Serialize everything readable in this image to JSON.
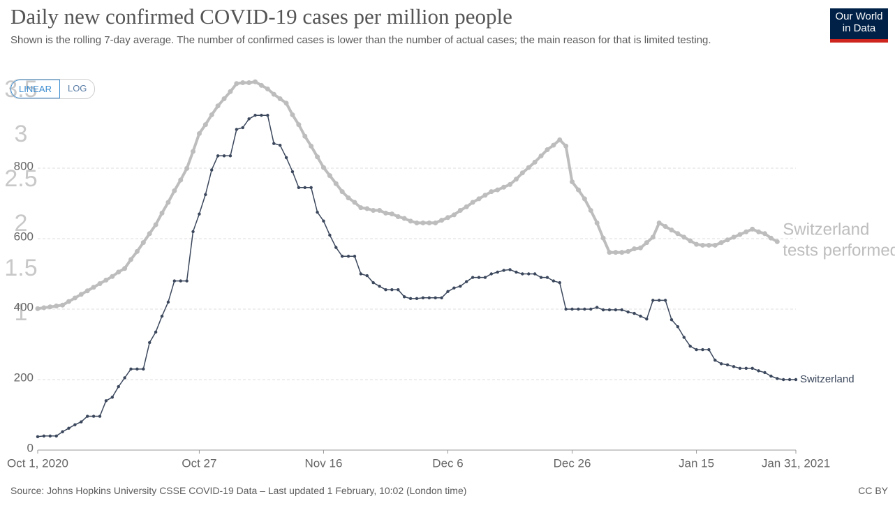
{
  "chart_data": {
    "type": "line",
    "title": "Daily new confirmed COVID-19 cases per million people",
    "subtitle": "Shown is the rolling 7-day average. The number of confirmed cases is lower than the number of actual cases; the main reason for that is limited testing.",
    "source": "Source: Johns Hopkins University CSSE COVID-19 Data – Last updated 1 February, 10:02 (London time)",
    "license": "CC BY",
    "logo": [
      "Our World",
      "in Data"
    ],
    "scale_buttons": [
      "LINEAR",
      "LOG"
    ],
    "x": [
      "2020-10-01",
      "2020-10-02",
      "2020-10-03",
      "2020-10-04",
      "2020-10-05",
      "2020-10-06",
      "2020-10-07",
      "2020-10-08",
      "2020-10-09",
      "2020-10-10",
      "2020-10-11",
      "2020-10-12",
      "2020-10-13",
      "2020-10-14",
      "2020-10-15",
      "2020-10-16",
      "2020-10-17",
      "2020-10-18",
      "2020-10-19",
      "2020-10-20",
      "2020-10-21",
      "2020-10-22",
      "2020-10-23",
      "2020-10-24",
      "2020-10-25",
      "2020-10-26",
      "2020-10-27",
      "2020-10-28",
      "2020-10-29",
      "2020-10-30",
      "2020-10-31",
      "2020-11-01",
      "2020-11-02",
      "2020-11-03",
      "2020-11-04",
      "2020-11-05",
      "2020-11-06",
      "2020-11-07",
      "2020-11-08",
      "2020-11-09",
      "2020-11-10",
      "2020-11-11",
      "2020-11-12",
      "2020-11-13",
      "2020-11-14",
      "2020-11-15",
      "2020-11-16",
      "2020-11-17",
      "2020-11-18",
      "2020-11-19",
      "2020-11-20",
      "2020-11-21",
      "2020-11-22",
      "2020-11-23",
      "2020-11-24",
      "2020-11-25",
      "2020-11-26",
      "2020-11-27",
      "2020-11-28",
      "2020-11-29",
      "2020-11-30",
      "2020-12-01",
      "2020-12-02",
      "2020-12-03",
      "2020-12-04",
      "2020-12-05",
      "2020-12-06",
      "2020-12-07",
      "2020-12-08",
      "2020-12-09",
      "2020-12-10",
      "2020-12-11",
      "2020-12-12",
      "2020-12-13",
      "2020-12-14",
      "2020-12-15",
      "2020-12-16",
      "2020-12-17",
      "2020-12-18",
      "2020-12-19",
      "2020-12-20",
      "2020-12-21",
      "2020-12-22",
      "2020-12-23",
      "2020-12-24",
      "2020-12-25",
      "2020-12-26",
      "2020-12-27",
      "2020-12-28",
      "2020-12-29",
      "2020-12-30",
      "2020-12-31",
      "2021-01-01",
      "2021-01-02",
      "2021-01-03",
      "2021-01-04",
      "2021-01-05",
      "2021-01-06",
      "2021-01-07",
      "2021-01-08",
      "2021-01-09",
      "2021-01-10",
      "2021-01-11",
      "2021-01-12",
      "2021-01-13",
      "2021-01-14",
      "2021-01-15",
      "2021-01-16",
      "2021-01-17",
      "2021-01-18",
      "2021-01-19",
      "2021-01-20",
      "2021-01-21",
      "2021-01-22",
      "2021-01-23",
      "2021-01-24",
      "2021-01-25",
      "2021-01-26",
      "2021-01-27",
      "2021-01-28",
      "2021-01-29",
      "2021-01-30",
      "2021-01-31"
    ],
    "xlim": [
      "2020-10-01",
      "2021-01-31"
    ],
    "xticks": [
      {
        "value": "2020-10-01",
        "label": "Oct 1, 2020"
      },
      {
        "value": "2020-10-27",
        "label": "Oct 27"
      },
      {
        "value": "2020-11-16",
        "label": "Nov 16"
      },
      {
        "value": "2020-12-06",
        "label": "Dec 6"
      },
      {
        "value": "2020-12-26",
        "label": "Dec 26"
      },
      {
        "value": "2021-01-15",
        "label": "Jan 15"
      },
      {
        "value": "2021-01-31",
        "label": "Jan 31, 2021"
      }
    ],
    "ylim": [
      0,
      1000
    ],
    "yticks": [
      0,
      200,
      400,
      600,
      800
    ],
    "y2lim": [
      1,
      3.5
    ],
    "y2ticks": [
      1,
      1.5,
      2,
      2.5,
      3,
      3.5
    ],
    "grid": true,
    "series": [
      {
        "name": "Switzerland",
        "color": "#3b475c",
        "values": [
          38,
          40,
          40,
          40,
          52,
          62,
          72,
          80,
          96,
          96,
          96,
          140,
          150,
          180,
          205,
          230,
          230,
          230,
          305,
          335,
          380,
          420,
          480,
          480,
          480,
          620,
          670,
          725,
          795,
          835,
          835,
          835,
          910,
          915,
          940,
          950,
          950,
          950,
          870,
          865,
          830,
          790,
          745,
          745,
          745,
          675,
          650,
          610,
          575,
          550,
          550,
          550,
          500,
          495,
          475,
          465,
          455,
          455,
          455,
          435,
          430,
          430,
          432,
          432,
          432,
          432,
          450,
          460,
          465,
          478,
          490,
          490,
          490,
          500,
          505,
          510,
          512,
          505,
          500,
          500,
          500,
          490,
          490,
          480,
          475,
          400,
          400,
          400,
          400,
          400,
          405,
          398,
          398,
          398,
          398,
          392,
          388,
          380,
          372,
          425,
          425,
          425,
          370,
          350,
          320,
          295,
          285,
          285,
          285,
          255,
          245,
          242,
          237,
          232,
          232,
          232,
          225,
          220,
          210,
          203,
          200,
          200,
          200
        ]
      },
      {
        "name": "Switzerland",
        "sublabel": "tests performed",
        "color": "#bdbdbd",
        "axis": "y2",
        "values": [
          1.06,
          1.07,
          1.08,
          1.09,
          1.1,
          1.14,
          1.18,
          1.22,
          1.26,
          1.3,
          1.34,
          1.38,
          1.42,
          1.47,
          1.51,
          1.61,
          1.7,
          1.8,
          1.9,
          2.0,
          2.13,
          2.25,
          2.38,
          2.5,
          2.63,
          2.82,
          3.02,
          3.12,
          3.23,
          3.33,
          3.41,
          3.49,
          3.58,
          3.59,
          3.59,
          3.6,
          3.56,
          3.52,
          3.46,
          3.41,
          3.36,
          3.23,
          3.12,
          2.99,
          2.88,
          2.76,
          2.64,
          2.55,
          2.46,
          2.37,
          2.3,
          2.25,
          2.19,
          2.18,
          2.16,
          2.16,
          2.13,
          2.12,
          2.09,
          2.07,
          2.04,
          2.02,
          2.02,
          2.02,
          2.02,
          2.05,
          2.08,
          2.11,
          2.16,
          2.2,
          2.25,
          2.29,
          2.33,
          2.37,
          2.39,
          2.42,
          2.45,
          2.51,
          2.58,
          2.64,
          2.7,
          2.77,
          2.84,
          2.89,
          2.95,
          2.88,
          2.48,
          2.39,
          2.29,
          2.16,
          2.02,
          1.85,
          1.69,
          1.69,
          1.69,
          1.7,
          1.73,
          1.74,
          1.8,
          1.86,
          2.02,
          1.98,
          1.94,
          1.9,
          1.86,
          1.82,
          1.78,
          1.77,
          1.77,
          1.77,
          1.8,
          1.83,
          1.86,
          1.89,
          1.92,
          1.95,
          1.92,
          1.9,
          1.85,
          1.81,
          null,
          null,
          null
        ]
      }
    ]
  }
}
